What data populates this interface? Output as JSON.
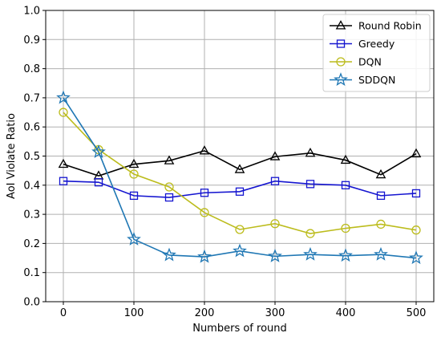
{
  "chart_data": {
    "type": "line",
    "title": "",
    "xlabel": "Numbers of round",
    "ylabel": "AoI Violate Ratio",
    "x": [
      0,
      50,
      100,
      150,
      200,
      250,
      300,
      350,
      400,
      450,
      500
    ],
    "xlim": [
      -25,
      525
    ],
    "ylim": [
      0.0,
      1.0
    ],
    "xticks": [
      "0",
      "100",
      "200",
      "300",
      "400",
      "500"
    ],
    "yticks": [
      "0.0",
      "0.1",
      "0.2",
      "0.3",
      "0.4",
      "0.5",
      "0.6",
      "0.7",
      "0.8",
      "0.9",
      "1.0"
    ],
    "grid": true,
    "legend_position": "top-right",
    "series": [
      {
        "name": "Round Robin",
        "color": "#000000",
        "marker": "triangle",
        "values": [
          0.472,
          0.432,
          0.472,
          0.484,
          0.518,
          0.454,
          0.498,
          0.51,
          0.486,
          0.436,
          0.508
        ]
      },
      {
        "name": "Greedy",
        "color": "#1515d0",
        "marker": "square",
        "values": [
          0.414,
          0.41,
          0.364,
          0.358,
          0.374,
          0.378,
          0.414,
          0.404,
          0.4,
          0.364,
          0.372
        ]
      },
      {
        "name": "DQN",
        "color": "#bcbc1c",
        "marker": "circle",
        "values": [
          0.65,
          0.522,
          0.438,
          0.394,
          0.306,
          0.248,
          0.268,
          0.234,
          0.252,
          0.266,
          0.246
        ]
      },
      {
        "name": "SDDQN",
        "color": "#1f77b4",
        "marker": "star",
        "values": [
          0.7,
          0.514,
          0.214,
          0.16,
          0.154,
          0.174,
          0.156,
          0.162,
          0.158,
          0.162,
          0.15
        ]
      }
    ]
  }
}
